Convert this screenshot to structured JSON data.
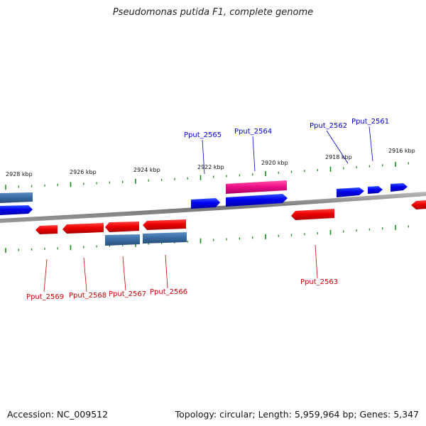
{
  "title": "Pseudomonas putida F1, complete genome",
  "footer": {
    "accession": "Accession: NC_009512",
    "summary": "Topology: circular; Length: 5,959,964 bp; Genes: 5,347"
  },
  "scale_labels": [
    "2928 kbp",
    "2926 kbp",
    "2924 kbp",
    "2922 kbp",
    "2920 kbp",
    "2918 kbp",
    "2916 kbp"
  ],
  "gene_labels": {
    "Pput_2561": "Pput_2561",
    "Pput_2562": "Pput_2562",
    "Pput_2563": "Pput_2563",
    "Pput_2564": "Pput_2564",
    "Pput_2565": "Pput_2565",
    "Pput_2566": "Pput_2566",
    "Pput_2567": "Pput_2567",
    "Pput_2568": "Pput_2568",
    "Pput_2569": "Pput_2569"
  },
  "colors": {
    "forward_gene": "#0000ee",
    "reverse_gene": "#ee0000",
    "highlight_gene": "#ee1188",
    "steel_gene": "#3a6ea5",
    "tick": "#1a8a1a",
    "backbone": "#888888"
  }
}
